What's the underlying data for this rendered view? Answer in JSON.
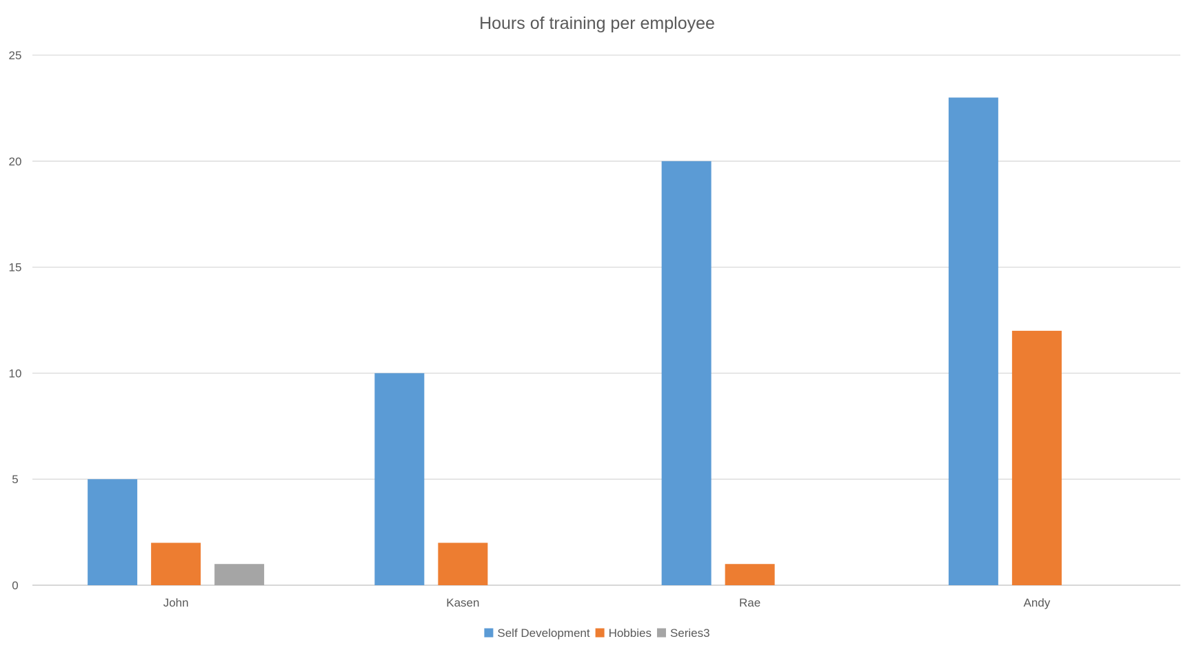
{
  "chart_data": {
    "type": "bar",
    "title": "Hours of training per employee",
    "xlabel": "",
    "ylabel": "",
    "categories": [
      "John",
      "Kasen",
      "Rae",
      "Andy"
    ],
    "series": [
      {
        "name": "Self Development",
        "color": "#5B9BD5",
        "values": [
          5,
          10,
          20,
          23
        ]
      },
      {
        "name": "Hobbies",
        "color": "#ED7D31",
        "values": [
          2,
          2,
          1,
          12
        ]
      },
      {
        "name": "Series3",
        "color": "#A5A5A5",
        "values": [
          1,
          null,
          null,
          null
        ]
      }
    ],
    "ylim": [
      0,
      25
    ],
    "yticks": [
      0,
      5,
      10,
      15,
      20,
      25
    ],
    "grid": true,
    "legend": "bottom-center",
    "colors": {
      "gridline": "#D9D9D9",
      "axis_line": "#BFBFBF",
      "text": "#595959"
    }
  }
}
